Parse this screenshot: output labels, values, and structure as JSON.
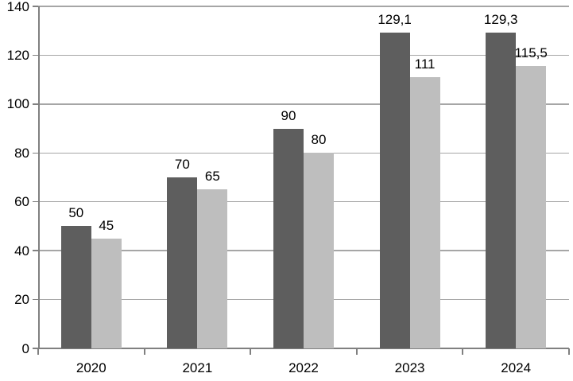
{
  "chart_data": {
    "type": "bar",
    "title": "",
    "xlabel": "",
    "ylabel": "",
    "categories": [
      "2020",
      "2021",
      "2022",
      "2023",
      "2024"
    ],
    "series": [
      {
        "name": "dark-gray",
        "color": "#5E5E5E",
        "values": [
          50,
          70,
          90,
          129.1,
          129.3
        ],
        "labels": [
          "50",
          "70",
          "90",
          "129,1",
          "129,3"
        ]
      },
      {
        "name": "light-gray",
        "color": "#BEBEBE",
        "values": [
          45,
          65,
          80,
          111,
          115.5
        ],
        "labels": [
          "45",
          "65",
          "80",
          "111",
          "115,5"
        ]
      }
    ],
    "ylim": [
      0,
      140
    ],
    "ytick_step": 20,
    "ytick_labels": [
      "0",
      "20",
      "40",
      "60",
      "80",
      "100",
      "120",
      "140"
    ],
    "grid": true,
    "legend": "none",
    "colors": {
      "gridline": "#A6A6A6",
      "axis": "#808080",
      "text": "#000000",
      "background": "#FFFFFF"
    }
  }
}
